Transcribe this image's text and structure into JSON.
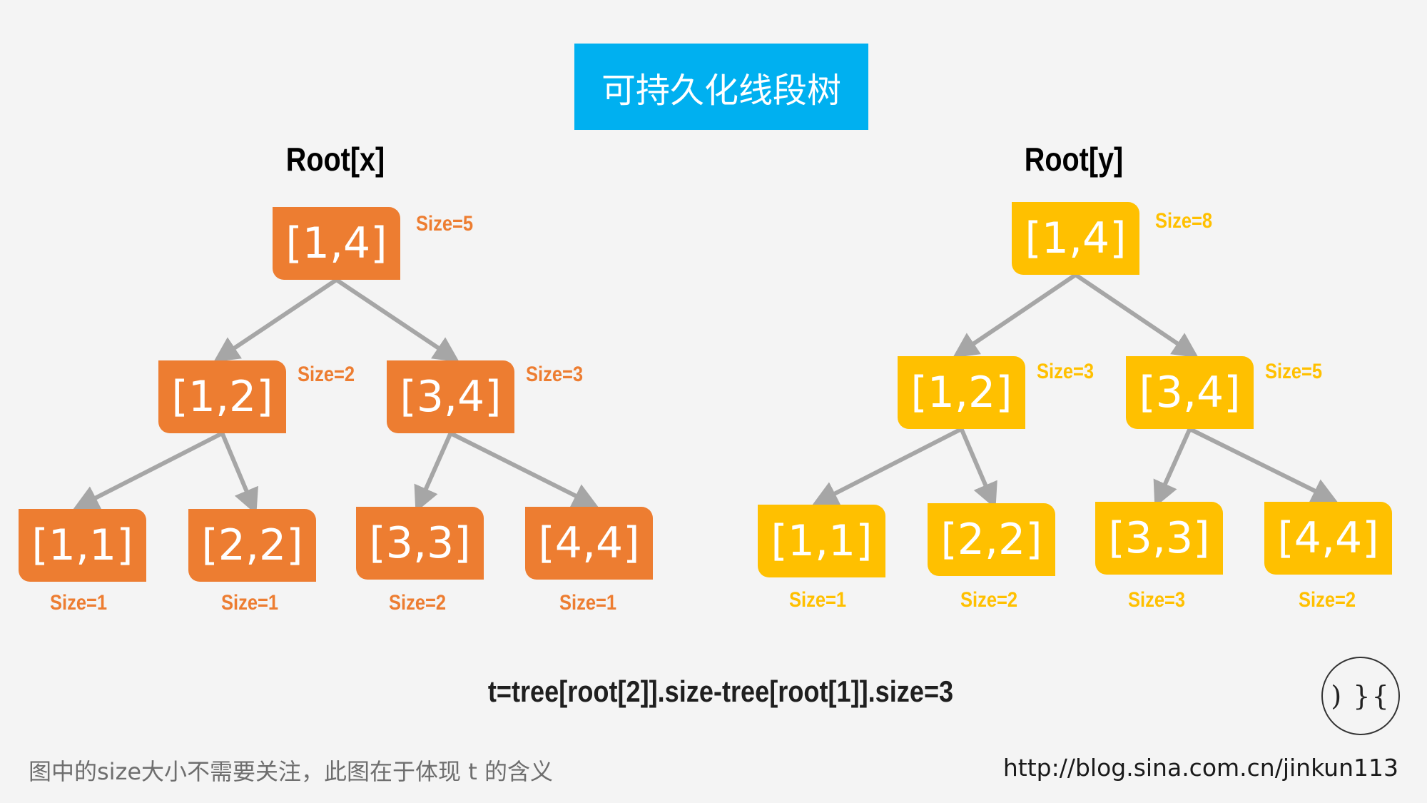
{
  "title": "可持久化线段树",
  "trees": [
    {
      "root_label": "Root[x]",
      "color": "#ed7d31",
      "nodes": [
        {
          "range": "[1,4]",
          "size": "Size=5"
        },
        {
          "range": "[1,2]",
          "size": "Size=2"
        },
        {
          "range": "[3,4]",
          "size": "Size=3"
        },
        {
          "range": "[1,1]",
          "size": "Size=1"
        },
        {
          "range": "[2,2]",
          "size": "Size=1"
        },
        {
          "range": "[3,3]",
          "size": "Size=2"
        },
        {
          "range": "[4,4]",
          "size": "Size=1"
        }
      ]
    },
    {
      "root_label": "Root[y]",
      "color": "#ffc000",
      "nodes": [
        {
          "range": "[1,4]",
          "size": "Size=8"
        },
        {
          "range": "[1,2]",
          "size": "Size=3"
        },
        {
          "range": "[3,4]",
          "size": "Size=5"
        },
        {
          "range": "[1,1]",
          "size": "Size=1"
        },
        {
          "range": "[2,2]",
          "size": "Size=2"
        },
        {
          "range": "[3,3]",
          "size": "Size=3"
        },
        {
          "range": "[4,4]",
          "size": "Size=2"
        }
      ]
    }
  ],
  "edges": [
    [
      0,
      1
    ],
    [
      0,
      2
    ],
    [
      1,
      3
    ],
    [
      1,
      4
    ],
    [
      2,
      5
    ],
    [
      2,
      6
    ]
  ],
  "edge_color": "#a6a6a6",
  "formula": "t=tree[root[2]].size-tree[root[1]].size=3",
  "footnote": "图中的size大小不需要关注，此图在于体现 t 的含义",
  "url": "http://blog.sina.com.cn/jinkun113",
  "logo_text": ") }{"
}
